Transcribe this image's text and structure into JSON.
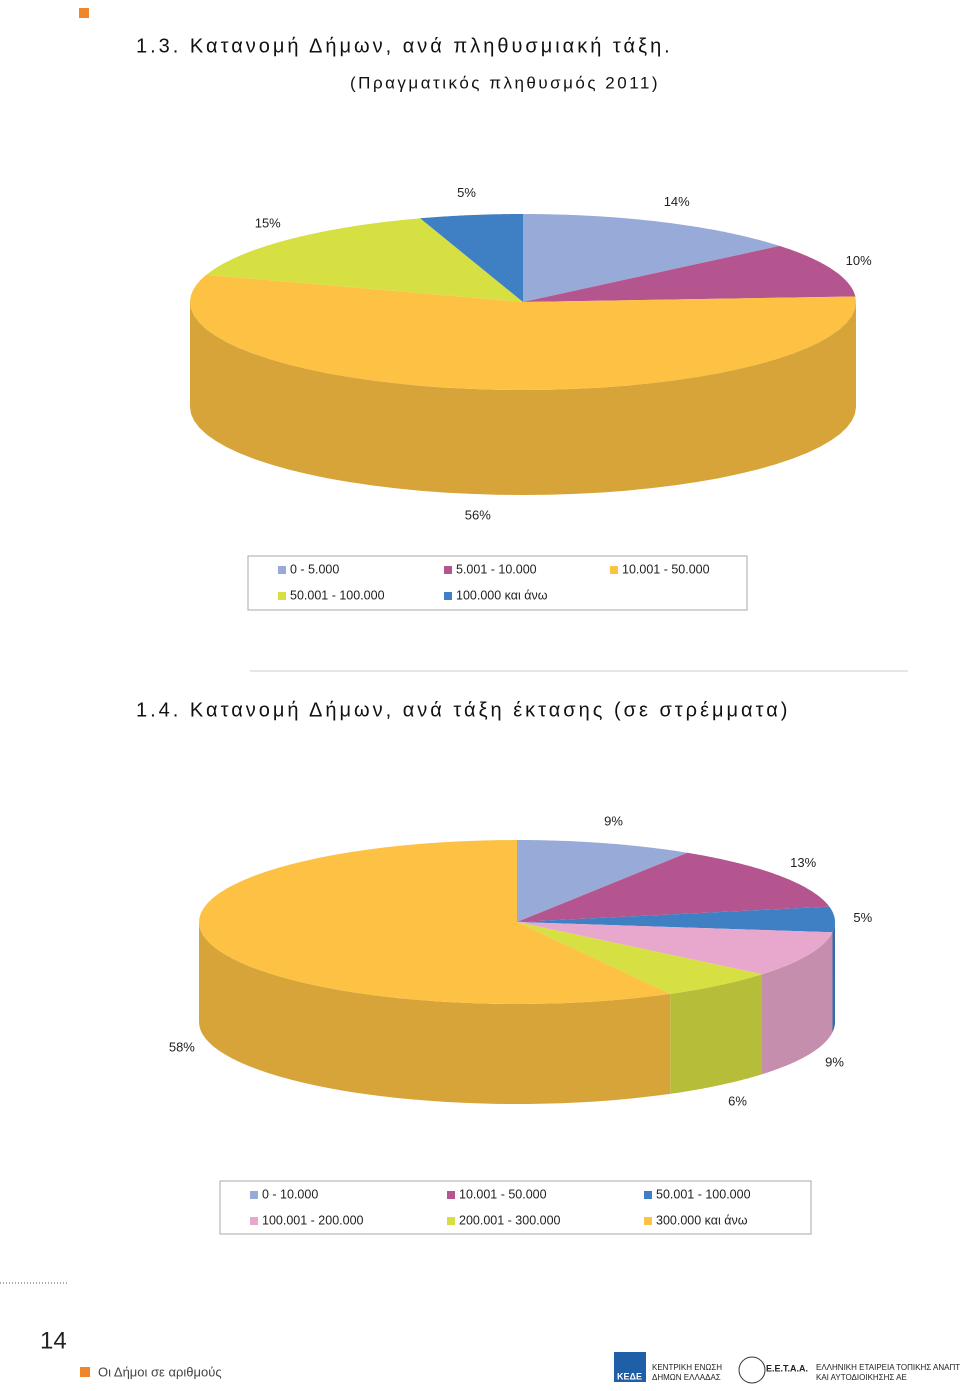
{
  "chart_data": [
    {
      "type": "pie3d",
      "title": "1.3. Κατανομή Δήμων, ανά πληθυσμιακή τάξη.",
      "subtitle": "(Πραγματικός πληθυσμός 2011)",
      "categories": [
        "0 - 5.000",
        "5.001 - 10.000",
        "10.001 - 50.000",
        "50.001 - 100.000",
        "100.000 και άνω"
      ],
      "values": [
        14,
        10,
        56,
        15,
        5
      ],
      "value_labels": [
        "14%",
        "10%",
        "56%",
        "15%",
        "5%"
      ],
      "colors": [
        "#98abd8",
        "#b4558f",
        "#fdc144",
        "#d6e043",
        "#3f7fc4"
      ],
      "legend": "bottom"
    },
    {
      "type": "pie3d",
      "title": "1.4. Κατανομή Δήμων, ανά τάξη έκτασης (σε στρέμματα)",
      "categories": [
        "0 - 10.000",
        "10.001 - 50.000",
        "50.001 - 100.000",
        "100.001 - 200.000",
        "200.001 - 300.000",
        "300.000 και άνω"
      ],
      "values": [
        9,
        13,
        5,
        9,
        6,
        58
      ],
      "value_labels": [
        "9%",
        "13%",
        "5%",
        "9%",
        "6%",
        "58%"
      ],
      "colors": [
        "#98abd8",
        "#b4558f",
        "#3f7fc4",
        "#e8a7cc",
        "#d6e043",
        "#fdc144"
      ],
      "legend": "bottom"
    }
  ],
  "footer": {
    "page_number": "14",
    "text": "Οι Δήμοι σε αριθμούς",
    "logo1": [
      "ΚΕΔΕ",
      "ΚΕΝΤΡΙΚΗ ΕΝΩΣΗ",
      "ΔΗΜΩΝ ΕΛΛΑΔΑΣ"
    ],
    "logo2": [
      "Ε.Ε.Τ.Α.Α.",
      "ΕΛΛΗΝΙΚΗ ΕΤΑΙΡΕΙΑ ΤΟΠΙΚΗΣ ΑΝΑΠΤΥΞΗΣ",
      "ΚΑΙ ΑΥΤΟΔΙΟΙΚΗΣΗΣ ΑΕ"
    ]
  }
}
